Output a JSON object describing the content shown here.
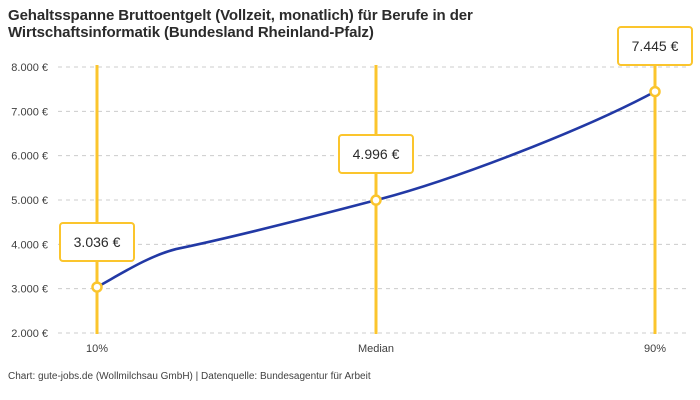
{
  "header": {
    "title_line1": "Gehaltsspanne Bruttoentgelt (Vollzeit, monatlich) für Berufe in der",
    "title_line2": "Wirtschaftsinformatik (Bundesland Rheinland-Pfalz)"
  },
  "footer": {
    "text": "Chart: gute-jobs.de (Wollmilchsau GmbH) | Datenquelle: Bundesagentur für Arbeit"
  },
  "colors": {
    "accent_yellow": "#FBC52D",
    "series_blue": "#2239A5",
    "grid": "#CCCCCC",
    "title_text": "#2B2B2B",
    "axis_text": "#404040",
    "background": "#FFFFFF",
    "label_box_bg": "#FFFFFF"
  },
  "chart_data": {
    "type": "line",
    "title": "Gehaltsspanne Bruttoentgelt (Vollzeit, monatlich) für Berufe in der Wirtschaftsinformatik (Bundesland Rheinland-Pfalz)",
    "categories": [
      "10%",
      "Median",
      "90%"
    ],
    "values": [
      3036,
      4996,
      7445
    ],
    "value_labels": [
      "3.036 €",
      "4.996 €",
      "7.445 €"
    ],
    "ylim": [
      2000,
      8000
    ],
    "y_tick_step": 1000,
    "y_tick_labels": [
      "2.000 €",
      "3.000 €",
      "4.000 €",
      "5.000 €",
      "6.000 €",
      "7.000 €",
      "8.000 €"
    ],
    "xlabel": "",
    "ylabel": "",
    "grid": "horizontal-dashed",
    "legend": "none",
    "marker": "open-circle-on-yellow-vertical-guides",
    "annotations": "each data point has a boxed value label on its vertical guide line",
    "source_note": "Chart: gute-jobs.de (Wollmilchsau GmbH) | Datenquelle: Bundesagentur für Arbeit"
  }
}
